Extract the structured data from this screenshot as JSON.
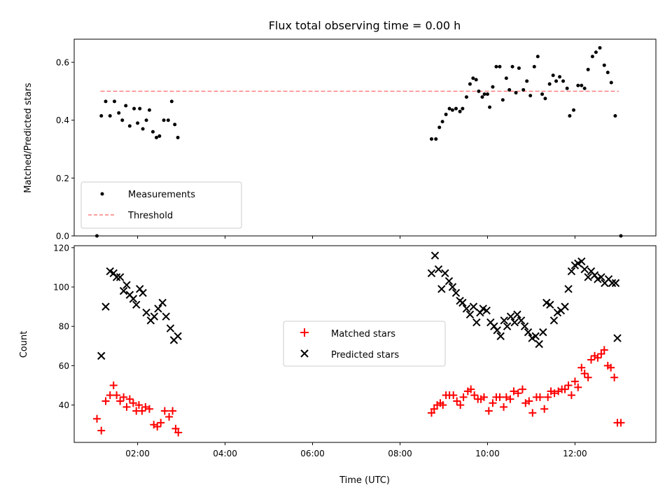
{
  "chart_data": [
    {
      "type": "scatter",
      "title": "Flux total observing time = 0.00 h",
      "xlabel": "",
      "ylabel": "Matched/Predicted stars",
      "xlim": [
        0.55,
        13.85
      ],
      "ylim": [
        0.0,
        0.68
      ],
      "yticks": [
        0.0,
        0.2,
        0.4,
        0.6
      ],
      "ytick_labels": [
        "0.0",
        "0.2",
        "0.4",
        "0.6"
      ],
      "xticks": [
        2,
        4,
        6,
        8,
        10,
        12
      ],
      "legend_location": "lower-left",
      "threshold": {
        "name": "Threshold",
        "value": 0.5,
        "x_start": 1.15,
        "x_end": 13.0,
        "color": "#ff7f7f",
        "style": "dashed"
      },
      "series": [
        {
          "name": "Measurements",
          "color": "#000000",
          "points": [
            [
              1.07,
              0.0
            ],
            [
              1.17,
              0.415
            ],
            [
              1.27,
              0.465
            ],
            [
              1.37,
              0.415
            ],
            [
              1.47,
              0.465
            ],
            [
              1.57,
              0.425
            ],
            [
              1.65,
              0.4
            ],
            [
              1.73,
              0.45
            ],
            [
              1.82,
              0.38
            ],
            [
              1.92,
              0.44
            ],
            [
              2.0,
              0.39
            ],
            [
              2.05,
              0.44
            ],
            [
              2.12,
              0.37
            ],
            [
              2.2,
              0.4
            ],
            [
              2.27,
              0.435
            ],
            [
              2.35,
              0.36
            ],
            [
              2.43,
              0.34
            ],
            [
              2.5,
              0.345
            ],
            [
              2.6,
              0.4
            ],
            [
              2.7,
              0.4
            ],
            [
              2.78,
              0.465
            ],
            [
              2.85,
              0.385
            ],
            [
              2.92,
              0.34
            ],
            [
              8.72,
              0.335
            ],
            [
              8.82,
              0.335
            ],
            [
              8.9,
              0.375
            ],
            [
              8.97,
              0.395
            ],
            [
              9.05,
              0.42
            ],
            [
              9.13,
              0.44
            ],
            [
              9.2,
              0.435
            ],
            [
              9.28,
              0.44
            ],
            [
              9.37,
              0.43
            ],
            [
              9.43,
              0.44
            ],
            [
              9.52,
              0.48
            ],
            [
              9.6,
              0.525
            ],
            [
              9.67,
              0.545
            ],
            [
              9.74,
              0.54
            ],
            [
              9.8,
              0.5
            ],
            [
              9.88,
              0.48
            ],
            [
              9.93,
              0.49
            ],
            [
              10.0,
              0.49
            ],
            [
              10.05,
              0.445
            ],
            [
              10.12,
              0.515
            ],
            [
              10.2,
              0.585
            ],
            [
              10.28,
              0.585
            ],
            [
              10.35,
              0.47
            ],
            [
              10.43,
              0.545
            ],
            [
              10.5,
              0.505
            ],
            [
              10.57,
              0.585
            ],
            [
              10.65,
              0.495
            ],
            [
              10.72,
              0.58
            ],
            [
              10.82,
              0.505
            ],
            [
              10.9,
              0.535
            ],
            [
              10.98,
              0.485
            ],
            [
              11.07,
              0.585
            ],
            [
              11.15,
              0.62
            ],
            [
              11.25,
              0.49
            ],
            [
              11.32,
              0.475
            ],
            [
              11.42,
              0.525
            ],
            [
              11.5,
              0.555
            ],
            [
              11.57,
              0.535
            ],
            [
              11.65,
              0.55
            ],
            [
              11.73,
              0.535
            ],
            [
              11.82,
              0.51
            ],
            [
              11.88,
              0.415
            ],
            [
              11.97,
              0.435
            ],
            [
              12.07,
              0.52
            ],
            [
              12.15,
              0.52
            ],
            [
              12.22,
              0.51
            ],
            [
              12.3,
              0.575
            ],
            [
              12.4,
              0.62
            ],
            [
              12.48,
              0.635
            ],
            [
              12.57,
              0.65
            ],
            [
              12.67,
              0.59
            ],
            [
              12.75,
              0.565
            ],
            [
              12.83,
              0.53
            ],
            [
              12.92,
              0.415
            ],
            [
              13.05,
              0.0
            ]
          ]
        }
      ]
    },
    {
      "type": "scatter",
      "title": "",
      "xlabel": "Time (UTC)",
      "ylabel": "Count",
      "xlim": [
        0.55,
        13.85
      ],
      "ylim": [
        21,
        121
      ],
      "yticks": [
        40,
        60,
        80,
        100,
        120
      ],
      "ytick_labels": [
        "40",
        "60",
        "80",
        "100",
        "120"
      ],
      "xticks": [
        2,
        4,
        6,
        8,
        10,
        12
      ],
      "xtick_labels": [
        "02:00",
        "04:00",
        "06:00",
        "08:00",
        "10:00",
        "12:00"
      ],
      "legend_location": "center",
      "series": [
        {
          "name": "Matched stars",
          "color": "#ff0000",
          "marker": "plus",
          "points": [
            [
              1.07,
              33
            ],
            [
              1.17,
              27
            ],
            [
              1.27,
              42
            ],
            [
              1.37,
              45
            ],
            [
              1.45,
              50
            ],
            [
              1.52,
              45
            ],
            [
              1.6,
              42
            ],
            [
              1.68,
              44
            ],
            [
              1.75,
              39
            ],
            [
              1.82,
              43
            ],
            [
              1.9,
              41
            ],
            [
              1.97,
              37
            ],
            [
              2.03,
              40
            ],
            [
              2.1,
              37
            ],
            [
              2.18,
              39
            ],
            [
              2.27,
              38
            ],
            [
              2.37,
              30
            ],
            [
              2.45,
              29
            ],
            [
              2.53,
              31
            ],
            [
              2.62,
              37
            ],
            [
              2.72,
              34
            ],
            [
              2.8,
              37
            ],
            [
              2.87,
              28
            ],
            [
              2.93,
              26
            ],
            [
              8.72,
              36
            ],
            [
              8.78,
              38
            ],
            [
              8.85,
              40
            ],
            [
              8.92,
              41
            ],
            [
              8.98,
              40
            ],
            [
              9.05,
              45
            ],
            [
              9.13,
              45
            ],
            [
              9.22,
              45
            ],
            [
              9.3,
              42
            ],
            [
              9.38,
              40
            ],
            [
              9.45,
              44
            ],
            [
              9.55,
              47
            ],
            [
              9.62,
              48
            ],
            [
              9.7,
              45
            ],
            [
              9.78,
              43
            ],
            [
              9.85,
              43
            ],
            [
              9.92,
              44
            ],
            [
              10.03,
              37
            ],
            [
              10.12,
              41
            ],
            [
              10.2,
              44
            ],
            [
              10.28,
              44
            ],
            [
              10.37,
              39
            ],
            [
              10.43,
              44
            ],
            [
              10.52,
              43
            ],
            [
              10.6,
              47
            ],
            [
              10.7,
              46
            ],
            [
              10.8,
              48
            ],
            [
              10.87,
              41
            ],
            [
              10.95,
              42
            ],
            [
              11.03,
              36
            ],
            [
              11.12,
              44
            ],
            [
              11.2,
              44
            ],
            [
              11.3,
              38
            ],
            [
              11.38,
              44
            ],
            [
              11.45,
              47
            ],
            [
              11.53,
              46
            ],
            [
              11.62,
              47
            ],
            [
              11.7,
              48
            ],
            [
              11.77,
              48
            ],
            [
              11.85,
              50
            ],
            [
              11.92,
              45
            ],
            [
              12.0,
              52
            ],
            [
              12.07,
              49
            ],
            [
              12.15,
              59
            ],
            [
              12.22,
              56
            ],
            [
              12.3,
              54
            ],
            [
              12.37,
              63
            ],
            [
              12.45,
              65
            ],
            [
              12.52,
              64
            ],
            [
              12.6,
              66
            ],
            [
              12.67,
              68
            ],
            [
              12.75,
              60
            ],
            [
              12.82,
              59
            ],
            [
              12.9,
              54
            ],
            [
              12.97,
              31
            ],
            [
              13.05,
              31
            ]
          ]
        },
        {
          "name": "Predicted stars",
          "color": "#000000",
          "marker": "x",
          "points": [
            [
              1.17,
              65
            ],
            [
              1.27,
              90
            ],
            [
              1.37,
              108
            ],
            [
              1.45,
              107
            ],
            [
              1.52,
              105
            ],
            [
              1.6,
              105
            ],
            [
              1.68,
              98
            ],
            [
              1.75,
              101
            ],
            [
              1.82,
              96
            ],
            [
              1.9,
              94
            ],
            [
              1.97,
              91
            ],
            [
              2.05,
              99
            ],
            [
              2.12,
              97
            ],
            [
              2.2,
              87
            ],
            [
              2.3,
              83
            ],
            [
              2.38,
              85
            ],
            [
              2.47,
              89
            ],
            [
              2.57,
              92
            ],
            [
              2.65,
              85
            ],
            [
              2.75,
              79
            ],
            [
              2.83,
              73
            ],
            [
              2.92,
              75
            ],
            [
              8.72,
              107
            ],
            [
              8.8,
              116
            ],
            [
              8.88,
              109
            ],
            [
              8.95,
              99
            ],
            [
              9.03,
              107
            ],
            [
              9.12,
              103
            ],
            [
              9.2,
              100
            ],
            [
              9.28,
              97
            ],
            [
              9.37,
              93
            ],
            [
              9.43,
              92
            ],
            [
              9.52,
              89
            ],
            [
              9.6,
              86
            ],
            [
              9.68,
              90
            ],
            [
              9.75,
              82
            ],
            [
              9.83,
              87
            ],
            [
              9.9,
              89
            ],
            [
              9.98,
              88
            ],
            [
              10.07,
              82
            ],
            [
              10.15,
              80
            ],
            [
              10.22,
              78
            ],
            [
              10.3,
              75
            ],
            [
              10.38,
              83
            ],
            [
              10.45,
              80
            ],
            [
              10.53,
              85
            ],
            [
              10.62,
              82
            ],
            [
              10.68,
              86
            ],
            [
              10.77,
              83
            ],
            [
              10.85,
              80
            ],
            [
              10.93,
              77
            ],
            [
              11.02,
              74
            ],
            [
              11.1,
              75
            ],
            [
              11.18,
              71
            ],
            [
              11.27,
              77
            ],
            [
              11.35,
              92
            ],
            [
              11.43,
              91
            ],
            [
              11.52,
              83
            ],
            [
              11.6,
              87
            ],
            [
              11.68,
              88
            ],
            [
              11.77,
              90
            ],
            [
              11.85,
              99
            ],
            [
              11.92,
              108
            ],
            [
              12.0,
              111
            ],
            [
              12.07,
              112
            ],
            [
              12.15,
              113
            ],
            [
              12.22,
              109
            ],
            [
              12.3,
              105
            ],
            [
              12.37,
              108
            ],
            [
              12.45,
              106
            ],
            [
              12.52,
              104
            ],
            [
              12.6,
              105
            ],
            [
              12.68,
              102
            ],
            [
              12.77,
              104
            ],
            [
              12.85,
              102
            ],
            [
              12.93,
              102
            ],
            [
              12.97,
              74
            ]
          ]
        }
      ]
    }
  ]
}
